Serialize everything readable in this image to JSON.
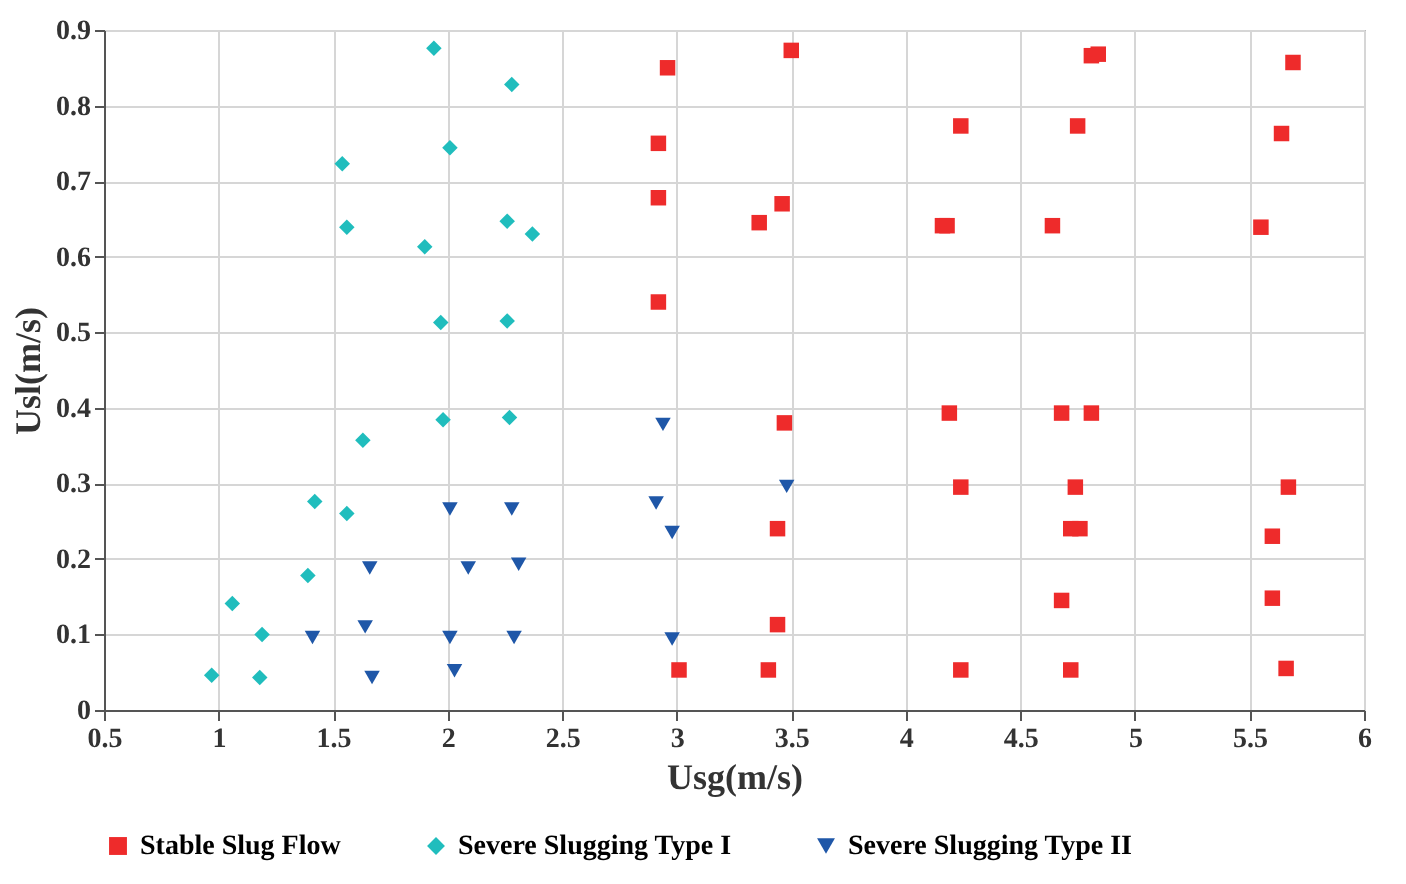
{
  "chart_data": {
    "type": "scatter",
    "xlabel": "Usg(m/s)",
    "ylabel": "Usl(m/s)",
    "xlim": [
      0.5,
      6
    ],
    "xticks": [
      0.5,
      1,
      1.5,
      2,
      2.5,
      3,
      3.5,
      4,
      4.5,
      5,
      5.5,
      6
    ],
    "ylim": [
      0,
      0.9
    ],
    "yticks": [
      0,
      0.1,
      0.2,
      0.3,
      0.4,
      0.5,
      0.6,
      0.7,
      0.8,
      0.9
    ],
    "grid": true,
    "legend": "bottom",
    "series": [
      {
        "name": "Stable Slug Flow",
        "color": "#ee2b2b",
        "marker": "square",
        "x": [
          2.96,
          2.92,
          2.92,
          2.92,
          3.5,
          3.46,
          3.36,
          3.47,
          3.44,
          3.44,
          3.4,
          3.01,
          4.24,
          4.16,
          4.18,
          4.19,
          4.24,
          4.24,
          4.81,
          4.84,
          4.75,
          4.64,
          4.68,
          4.81,
          4.74,
          4.72,
          4.76,
          4.68,
          4.72,
          5.69,
          5.64,
          5.55,
          5.67,
          5.6,
          5.6,
          5.66
        ],
        "values": [
          0.85,
          0.75,
          0.678,
          0.54,
          0.873,
          0.67,
          0.645,
          0.38,
          0.24,
          0.113,
          0.053,
          0.053,
          0.773,
          0.641,
          0.641,
          0.393,
          0.295,
          0.053,
          0.866,
          0.868,
          0.773,
          0.641,
          0.393,
          0.393,
          0.295,
          0.24,
          0.24,
          0.145,
          0.053,
          0.857,
          0.763,
          0.639,
          0.295,
          0.23,
          0.148,
          0.055
        ]
      },
      {
        "name": "Severe Slugging Type I",
        "color": "#20bdbd",
        "marker": "diamond",
        "x": [
          1.94,
          2.28,
          1.54,
          2.01,
          1.56,
          1.9,
          2.26,
          2.37,
          1.97,
          2.26,
          1.98,
          2.27,
          1.63,
          1.42,
          1.56,
          1.39,
          1.06,
          1.19,
          0.97,
          1.18
        ],
        "values": [
          0.876,
          0.828,
          0.723,
          0.744,
          0.639,
          0.613,
          0.647,
          0.63,
          0.513,
          0.515,
          0.384,
          0.387,
          0.357,
          0.276,
          0.26,
          0.178,
          0.141,
          0.1,
          0.046,
          0.043
        ]
      },
      {
        "name": "Severe Slugging Type II",
        "color": "#1f57a8",
        "marker": "triangle",
        "x": [
          1.41,
          1.64,
          1.67,
          1.66,
          2.01,
          2.09,
          2.01,
          2.03,
          2.28,
          2.31,
          2.29,
          2.94,
          2.91,
          2.98,
          2.98,
          3.48
        ],
        "values": [
          0.096,
          0.11,
          0.043,
          0.188,
          0.266,
          0.188,
          0.096,
          0.052,
          0.266,
          0.193,
          0.096,
          0.378,
          0.274,
          0.235,
          0.094,
          0.296
        ]
      }
    ]
  }
}
